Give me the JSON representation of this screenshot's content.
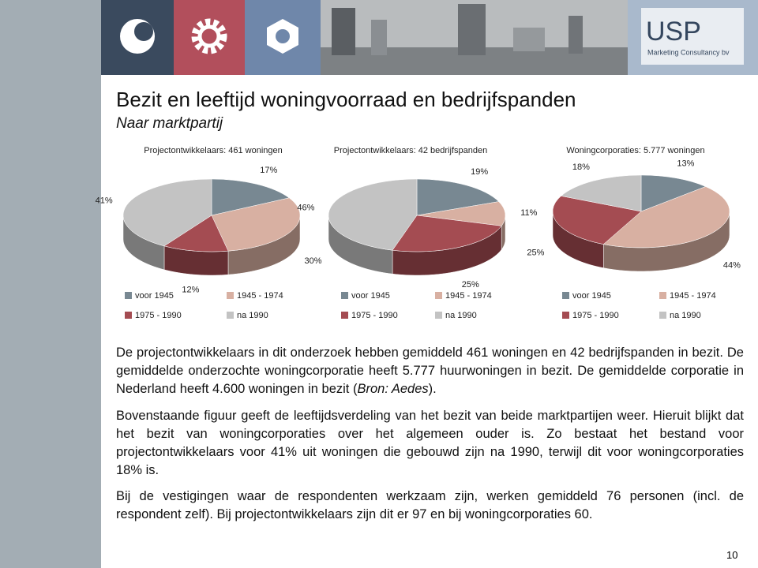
{
  "header": {
    "logo": "USP",
    "logo_tagline": "Marketing Consultancy bv"
  },
  "title": "Bezit en leeftijd woningvoorraad en bedrijfspanden",
  "subtitle": "Naar marktpartij",
  "chart_data": [
    {
      "type": "pie",
      "title": "Projectontwikkelaars: 461 woningen",
      "categories": [
        "voor 1945",
        "1945 - 1974",
        "1975 - 1990",
        "na 1990"
      ],
      "values": [
        17,
        30,
        12,
        41
      ],
      "value_labels": [
        "17%",
        "30%",
        "12%",
        "41%"
      ],
      "colors": [
        "#788892",
        "#d8b0a2",
        "#a44c52",
        "#c3c3c3"
      ]
    },
    {
      "type": "pie",
      "title": "Projectontwikkelaars: 42 bedrijfspanden",
      "categories": [
        "voor 1945",
        "1945 - 1974",
        "1975 - 1990",
        "na 1990"
      ],
      "values": [
        19,
        11,
        25,
        46
      ],
      "value_labels": [
        "19%",
        "11%",
        "25%",
        "46%"
      ],
      "colors": [
        "#788892",
        "#d8b0a2",
        "#a44c52",
        "#c3c3c3"
      ]
    },
    {
      "type": "pie",
      "title": "Woningcorporaties: 5.777 woningen",
      "categories": [
        "voor 1945",
        "1945 - 1974",
        "1975 - 1990",
        "na 1990"
      ],
      "values": [
        13,
        44,
        25,
        18
      ],
      "value_labels": [
        "13%",
        "44%",
        "25%",
        "18%"
      ],
      "colors": [
        "#788892",
        "#d8b0a2",
        "#a44c52",
        "#c3c3c3"
      ]
    }
  ],
  "paragraphs": [
    [
      "De projectontwikkelaars in dit onderzoek hebben gemiddeld 461 woningen en 42 bedrijfspanden in bezit. De gemiddelde onderzochte woningcorporatie heeft 5.777 huurwoningen in bezit. De gemiddelde corporatie in Nederland heeft 4.600 woningen in bezit (",
      "Bron: Aedes",
      ")."
    ],
    [
      "Bovenstaande figuur geeft de leeftijdsverdeling van het bezit van beide marktpartijen weer. Hieruit blijkt dat het bezit van woningcorporaties over het algemeen ouder is. Zo bestaat het bestand voor projectontwikkelaars voor 41% uit woningen die gebouwd zijn na 1990, terwijl dit voor woningcorporaties 18% is."
    ],
    [
      "Bij de vestigingen waar de respondenten werkzaam zijn, werken gemiddeld 76 personen (incl. de respondent zelf). Bij projectontwikkelaars zijn dit er 97 en bij woningcorporaties 60."
    ]
  ],
  "page_number": "10"
}
